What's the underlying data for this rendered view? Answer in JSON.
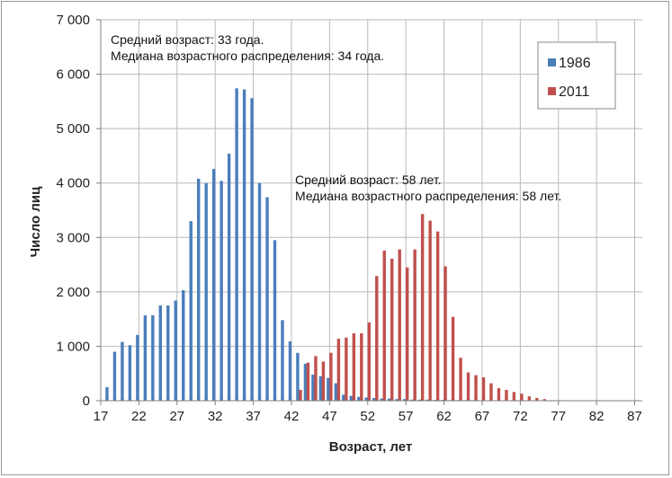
{
  "chart_data": {
    "type": "bar",
    "xlabel": "Возраст, лет",
    "ylabel": "Число лиц",
    "xlim": [
      17,
      88
    ],
    "ylim": [
      0,
      7000
    ],
    "x_ticks": [
      17,
      22,
      27,
      32,
      37,
      42,
      47,
      52,
      57,
      62,
      67,
      72,
      77,
      82,
      87
    ],
    "y_ticks": [
      {
        "value": 0,
        "label": "0"
      },
      {
        "value": 1000,
        "label": "1 000"
      },
      {
        "value": 2000,
        "label": "2 000"
      },
      {
        "value": 3000,
        "label": "3 000"
      },
      {
        "value": 4000,
        "label": "4 000"
      },
      {
        "value": 5000,
        "label": "5 000"
      },
      {
        "value": 6000,
        "label": "6 000"
      },
      {
        "value": 7000,
        "label": "7 000"
      }
    ],
    "grid": true,
    "legend_position": "top-right",
    "series": [
      {
        "name": "1986",
        "color": "#4a7ebb",
        "x": [
          18,
          19,
          20,
          21,
          22,
          23,
          24,
          25,
          26,
          27,
          28,
          29,
          30,
          31,
          32,
          33,
          34,
          35,
          36,
          37,
          38,
          39,
          40,
          41,
          42,
          43,
          44,
          45,
          46,
          47,
          48,
          49,
          50,
          51,
          52,
          53,
          54,
          55,
          56,
          57,
          58,
          59,
          60,
          61,
          62,
          63,
          64,
          65,
          66,
          67,
          68,
          69,
          70,
          71,
          72,
          73,
          74,
          75,
          76,
          77,
          78,
          79,
          80,
          81,
          82,
          83,
          84,
          85,
          86,
          87
        ],
        "values": [
          250,
          900,
          1080,
          1020,
          1210,
          1570,
          1570,
          1750,
          1750,
          1840,
          2030,
          3300,
          4080,
          4000,
          4260,
          4040,
          4540,
          5740,
          5720,
          5560,
          4000,
          3740,
          2950,
          1480,
          1090,
          880,
          680,
          480,
          450,
          420,
          320,
          110,
          90,
          70,
          60,
          50,
          40,
          40,
          30,
          30,
          20,
          20,
          20,
          15,
          15,
          10,
          10,
          10,
          10,
          5,
          5,
          5,
          5,
          5,
          5,
          5,
          5,
          5,
          5,
          5,
          5,
          5,
          5,
          5,
          5,
          5,
          5,
          5,
          5,
          5
        ]
      },
      {
        "name": "2011",
        "color": "#c0504d",
        "x": [
          18,
          19,
          20,
          21,
          22,
          23,
          24,
          25,
          26,
          27,
          28,
          29,
          30,
          31,
          32,
          33,
          34,
          35,
          36,
          37,
          38,
          39,
          40,
          41,
          42,
          43,
          44,
          45,
          46,
          47,
          48,
          49,
          50,
          51,
          52,
          53,
          54,
          55,
          56,
          57,
          58,
          59,
          60,
          61,
          62,
          63,
          64,
          65,
          66,
          67,
          68,
          69,
          70,
          71,
          72,
          73,
          74,
          75,
          76,
          77,
          78,
          79,
          80,
          81,
          82,
          83,
          84,
          85,
          86,
          87
        ],
        "values": [
          0,
          0,
          0,
          0,
          0,
          0,
          0,
          0,
          0,
          0,
          0,
          0,
          0,
          0,
          0,
          0,
          0,
          0,
          0,
          0,
          0,
          0,
          0,
          0,
          0,
          200,
          700,
          820,
          720,
          880,
          1140,
          1160,
          1240,
          1240,
          1440,
          2290,
          2760,
          2610,
          2780,
          2450,
          2780,
          3430,
          3310,
          3110,
          2470,
          1540,
          790,
          520,
          470,
          430,
          320,
          230,
          200,
          160,
          130,
          80,
          50,
          30,
          10,
          10,
          5,
          5,
          5,
          5,
          5,
          5,
          5,
          5,
          5,
          5
        ]
      }
    ],
    "annotations": [
      {
        "id": "a1986_mean",
        "text": "Средний возраст: 33 года."
      },
      {
        "id": "a1986_median",
        "text": "Медиана возрастного распределения: 34 года."
      },
      {
        "id": "a2011_mean",
        "text": "Средний возраст: 58 лет."
      },
      {
        "id": "a2011_median",
        "text": "Медиана возрастного распределения: 58 лет."
      }
    ]
  }
}
